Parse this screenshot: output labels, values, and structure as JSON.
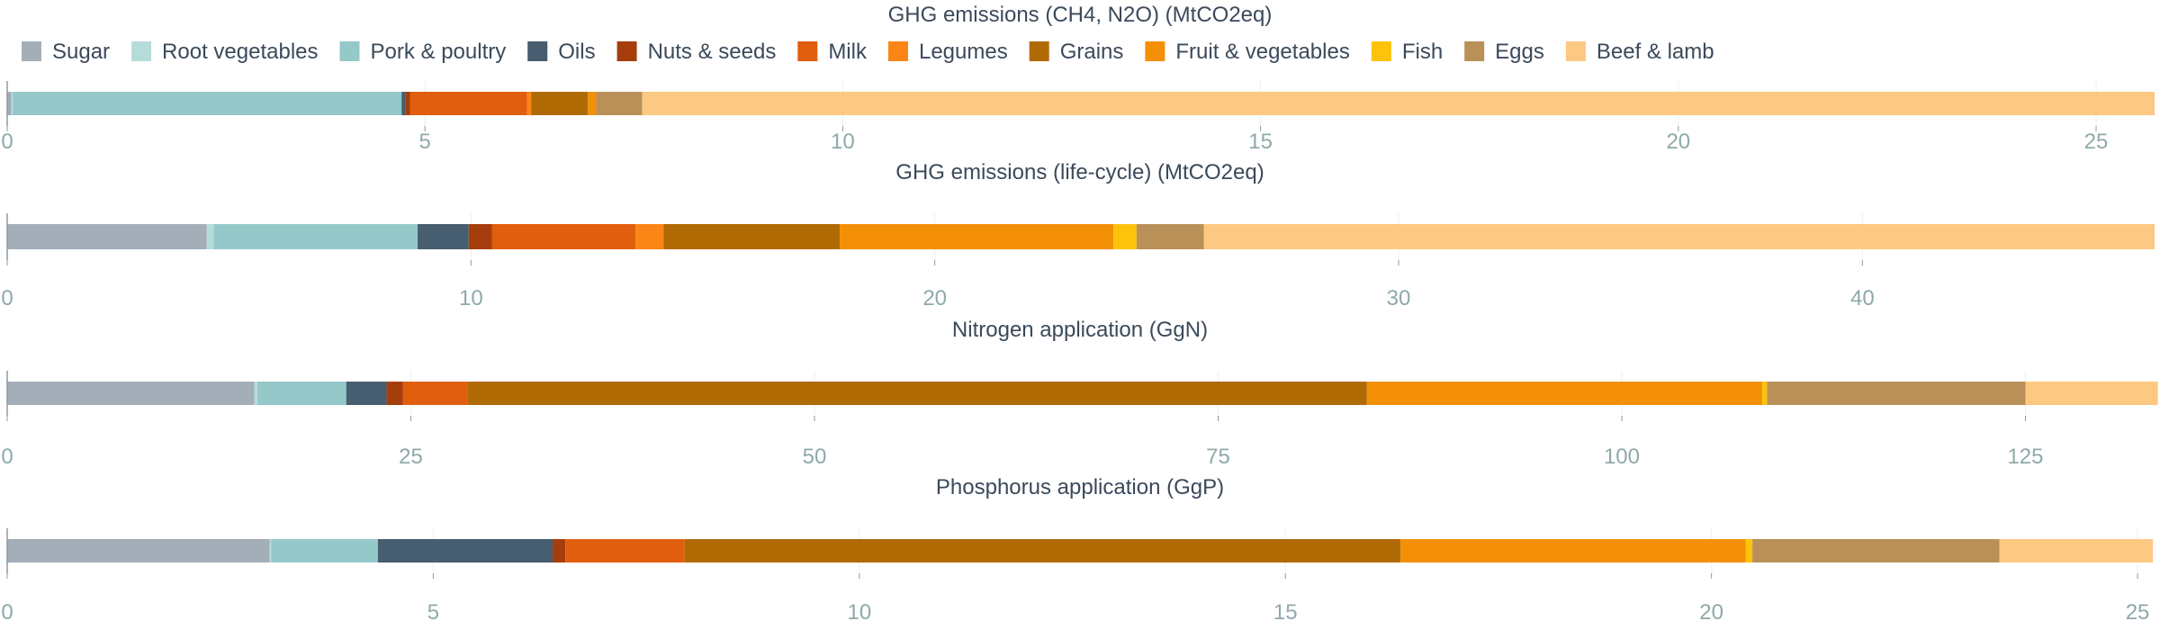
{
  "chart_data": {
    "type": "bar",
    "orientation": "horizontal",
    "stacked": true,
    "legend": {
      "placement": "top-left",
      "entries": [
        "Sugar",
        "Root vegetables",
        "Pork & poultry",
        "Oils",
        "Nuts & seeds",
        "Milk",
        "Legumes",
        "Grains",
        "Fruit & vegetables",
        "Fish",
        "Eggs",
        "Beef & lamb"
      ]
    },
    "colors": {
      "Sugar": "#a3aeb9",
      "Root vegetables": "#b6dcd9",
      "Pork & poultry": "#95c8c9",
      "Oils": "#475d70",
      "Nuts & seeds": "#a63d0c",
      "Milk": "#e05e0e",
      "Legumes": "#fb8516",
      "Grains": "#b06a04",
      "Fruit & vegetables": "#f39008",
      "Fish": "#fdc30b",
      "Eggs": "#b99058",
      "Beef & lamb": "#fdc882"
    },
    "grid": true,
    "panels": [
      {
        "title": "GHG emissions (CH4, N2O) (MtCO2eq)",
        "xlim": [
          0,
          25.7
        ],
        "ticks": [
          0,
          5,
          10,
          15,
          20,
          25
        ],
        "values": {
          "Sugar": 0.05,
          "Root vegetables": 0.02,
          "Pork & poultry": 4.65,
          "Oils": 0.05,
          "Nuts & seeds": 0.05,
          "Milk": 1.4,
          "Legumes": 0.05,
          "Grains": 0.68,
          "Fruit & vegetables": 0.1,
          "Fish": 0.0,
          "Eggs": 0.55,
          "Beef & lamb": 18.1
        }
      },
      {
        "title": "GHG emissions (life-cycle) (MtCO2eq)",
        "xlim": [
          0,
          46.3
        ],
        "ticks": [
          0,
          10,
          20,
          30,
          40
        ],
        "values": {
          "Sugar": 4.3,
          "Root vegetables": 0.15,
          "Pork & poultry": 4.4,
          "Oils": 1.1,
          "Nuts & seeds": 0.5,
          "Milk": 3.1,
          "Legumes": 0.6,
          "Grains": 3.8,
          "Fruit & vegetables": 5.9,
          "Fish": 0.5,
          "Eggs": 1.45,
          "Beef & lamb": 20.5
        }
      },
      {
        "title": "Nitrogen application (GgN)",
        "xlim": [
          0,
          133
        ],
        "ticks": [
          0,
          25,
          50,
          75,
          100,
          125
        ],
        "values": {
          "Sugar": 15.3,
          "Root vegetables": 0.2,
          "Pork & poultry": 5.5,
          "Oils": 2.5,
          "Nuts & seeds": 1.0,
          "Milk": 4.0,
          "Legumes": 0.0,
          "Grains": 55.7,
          "Fruit & vegetables": 24.5,
          "Fish": 0.3,
          "Eggs": 16.0,
          "Beef & lamb": 8.2
        }
      },
      {
        "title": "Phosphorus application (GgP)",
        "xlim": [
          0,
          25.2
        ],
        "ticks": [
          0,
          5,
          10,
          15,
          20,
          25
        ],
        "values": {
          "Sugar": 3.08,
          "Root vegetables": 0.02,
          "Pork & poultry": 1.25,
          "Oils": 2.05,
          "Nuts & seeds": 0.15,
          "Milk": 1.4,
          "Legumes": 0.0,
          "Grains": 8.4,
          "Fruit & vegetables": 4.05,
          "Fish": 0.08,
          "Eggs": 2.9,
          "Beef & lamb": 1.8
        }
      }
    ]
  }
}
